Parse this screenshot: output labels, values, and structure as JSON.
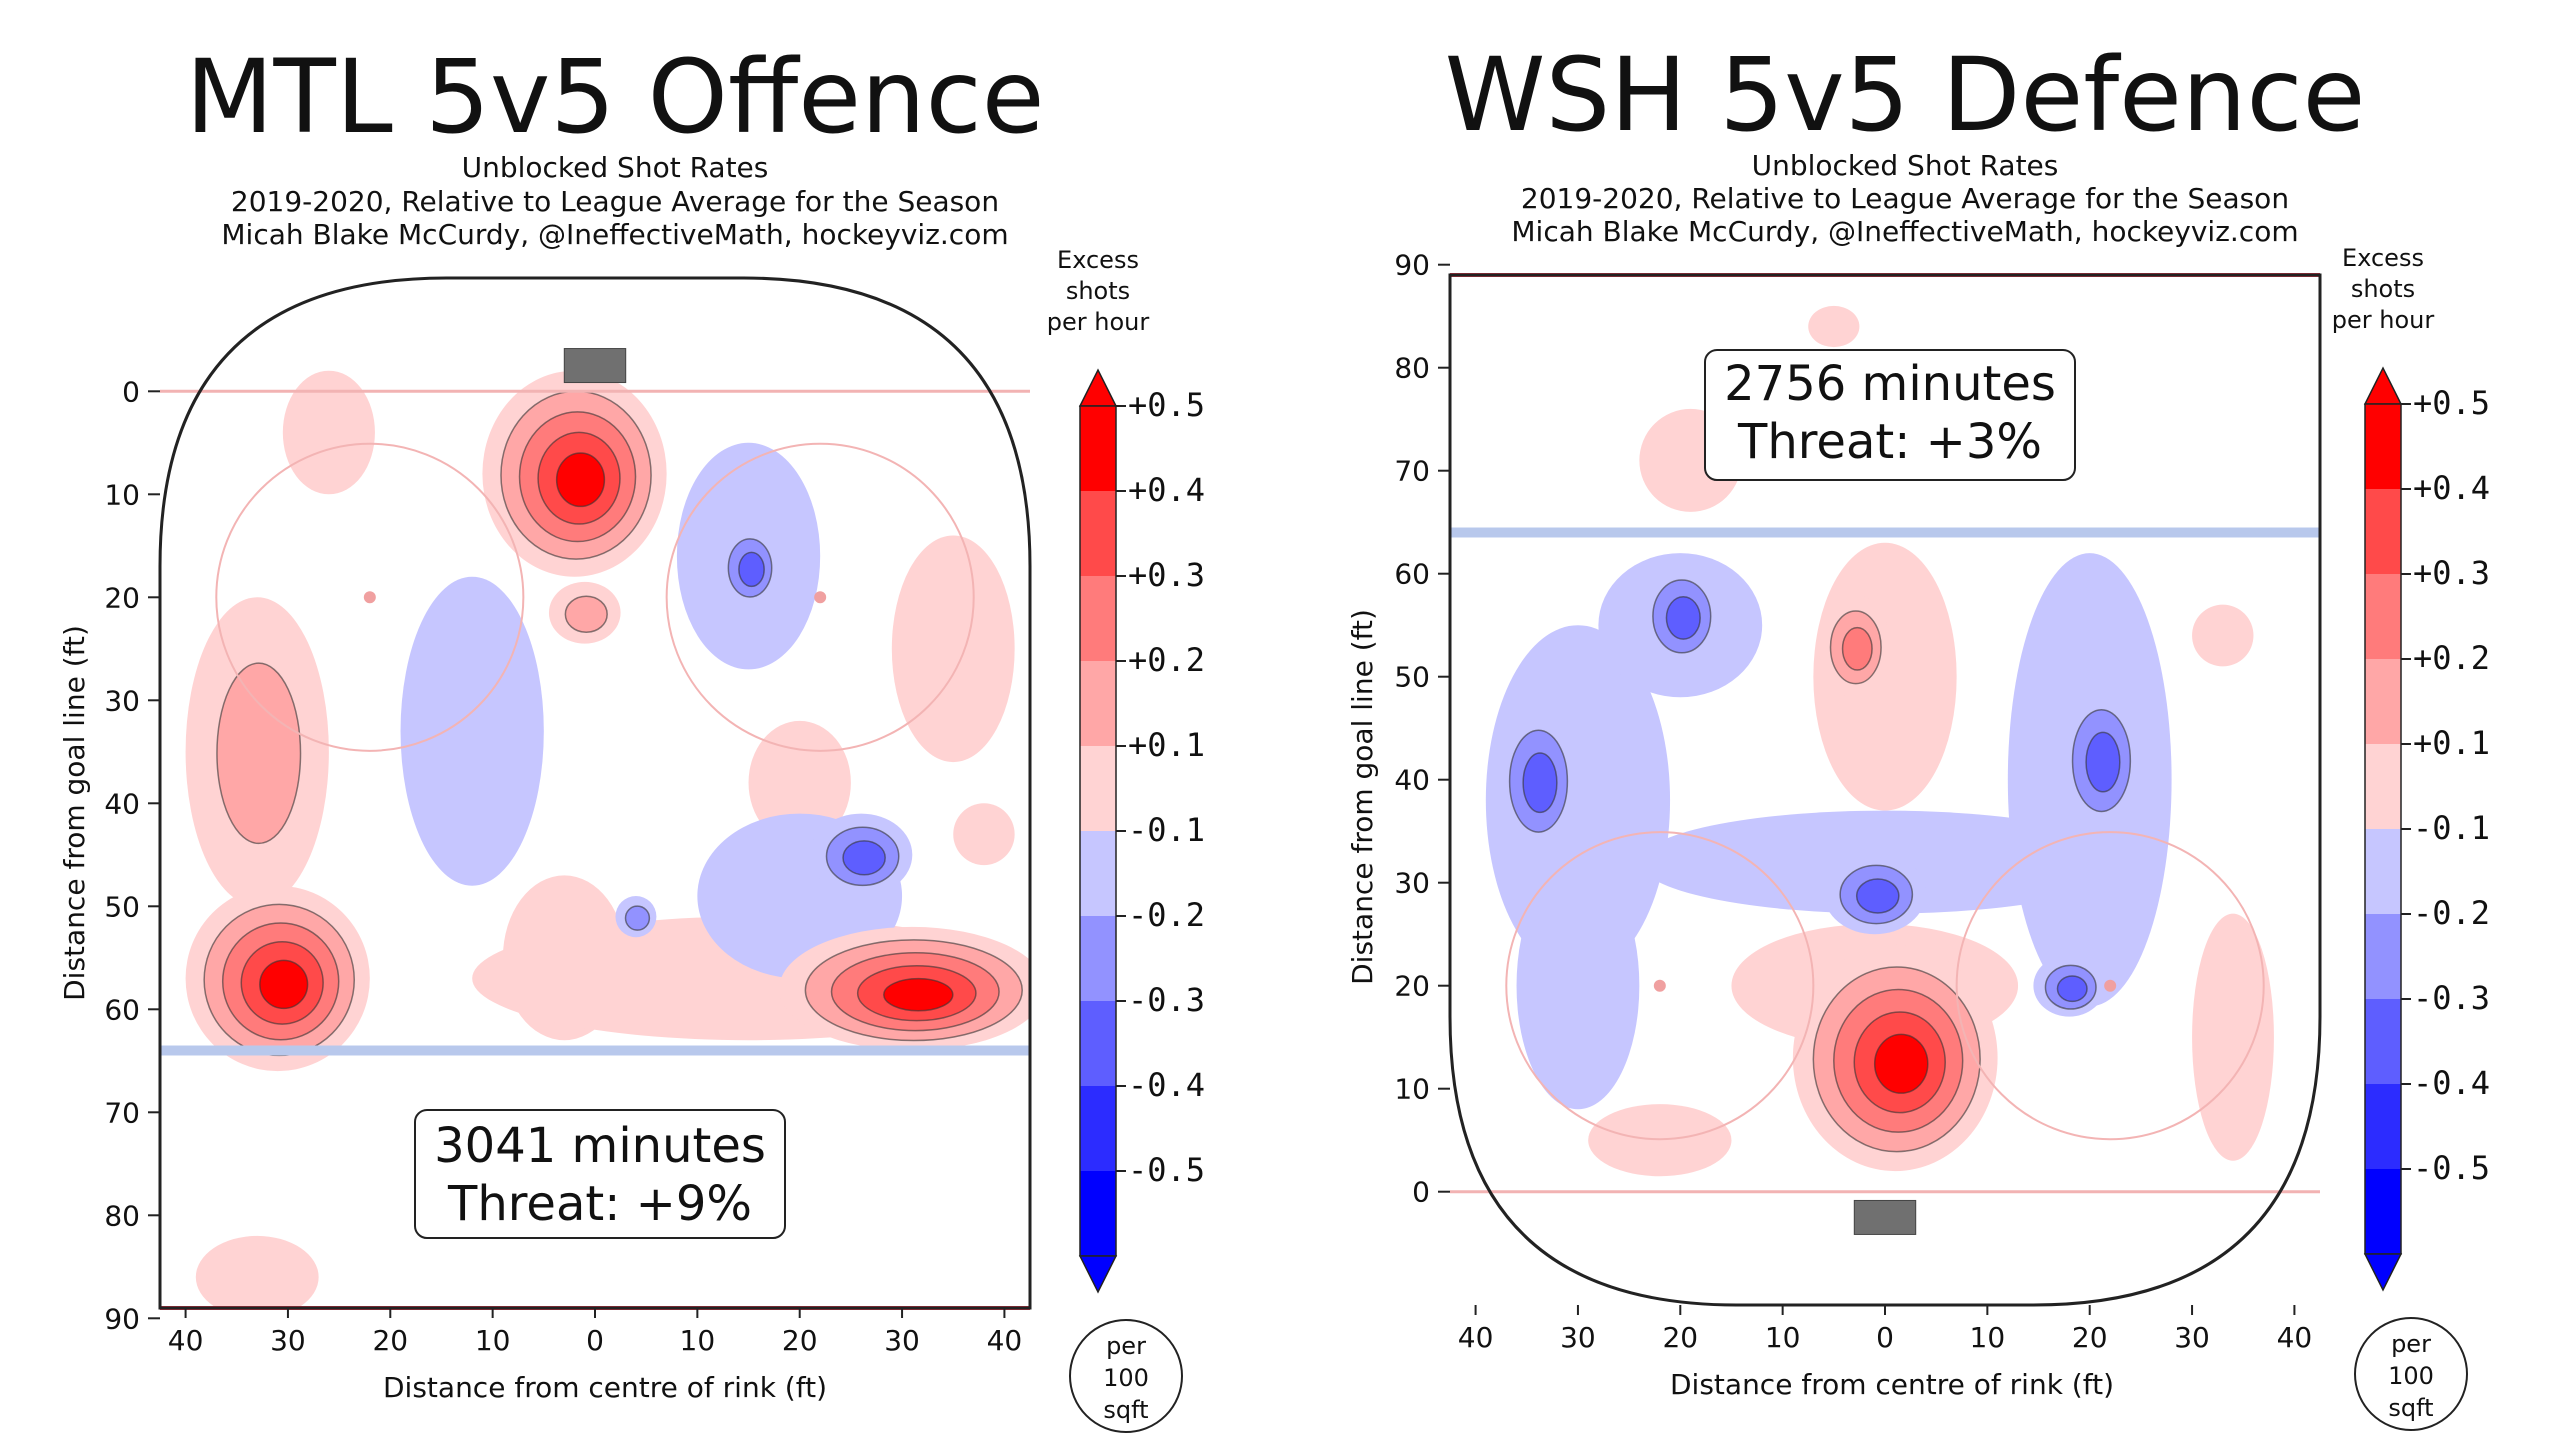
{
  "chart_data": [
    {
      "type": "heatmap",
      "title": "MTL 5v5 Offence",
      "subtitle_lines": [
        "Unblocked Shot Rates",
        "2019-2020, Relative to League Average for the Season",
        "Micah Blake McCurdy, @IneffectiveMath, hockeyviz.com"
      ],
      "xlabel": "Distance from centre of rink (ft)",
      "ylabel": "Distance from goal line (ft)",
      "x_ticks": [
        "40",
        "30",
        "20",
        "10",
        "0",
        "10",
        "20",
        "30",
        "40"
      ],
      "y_ticks": [
        "0",
        "10",
        "20",
        "30",
        "40",
        "50",
        "60",
        "70",
        "80",
        "90"
      ],
      "xlim": [
        -42.5,
        42.5
      ],
      "ylim": [
        -11,
        89
      ],
      "y_inverted": true,
      "goal_at": "top",
      "annotation": {
        "line1": "3041 minutes",
        "line2": "Threat: +9%"
      },
      "blobs": [
        {
          "x": -2,
          "y": 8,
          "rx": 9,
          "ry": 10,
          "value": 0.5
        },
        {
          "x": -1,
          "y": 21.5,
          "rx": 3.5,
          "ry": 3,
          "value": 0.2
        },
        {
          "x": -26,
          "y": 4,
          "rx": 4.5,
          "ry": 6,
          "value": 0.15
        },
        {
          "x": -31,
          "y": 57,
          "rx": 9,
          "ry": 9,
          "value": 0.5
        },
        {
          "x": -33,
          "y": 35,
          "rx": 7,
          "ry": 15,
          "value": 0.18
        },
        {
          "x": 31,
          "y": 58,
          "rx": 13,
          "ry": 6,
          "value": 0.5
        },
        {
          "x": 15,
          "y": 57,
          "rx": 27,
          "ry": 6,
          "value": 0.15
        },
        {
          "x": 35,
          "y": 25,
          "rx": 6,
          "ry": 11,
          "value": 0.12
        },
        {
          "x": 20,
          "y": 38,
          "rx": 5,
          "ry": 6,
          "value": 0.15
        },
        {
          "x": -3,
          "y": 55,
          "rx": 6,
          "ry": 8,
          "value": 0.12
        },
        {
          "x": -33,
          "y": 86,
          "rx": 6,
          "ry": 4,
          "value": 0.15
        },
        {
          "x": 38,
          "y": 43,
          "rx": 3,
          "ry": 3,
          "value": 0.12
        },
        {
          "x": 15,
          "y": 16,
          "rx": 7,
          "ry": 11,
          "value": -0.15
        },
        {
          "x": 15,
          "y": 17,
          "rx": 3,
          "ry": 4,
          "value": -0.3
        },
        {
          "x": -12,
          "y": 33,
          "rx": 7,
          "ry": 15,
          "value": -0.15
        },
        {
          "x": 20,
          "y": 49,
          "rx": 10,
          "ry": 8,
          "value": -0.15
        },
        {
          "x": 26,
          "y": 45,
          "rx": 5,
          "ry": 4,
          "value": -0.3
        },
        {
          "x": 4,
          "y": 51,
          "rx": 2,
          "ry": 2,
          "value": -0.2
        }
      ]
    },
    {
      "type": "heatmap",
      "title": "WSH 5v5 Defence",
      "subtitle_lines": [
        "Unblocked Shot Rates",
        "2019-2020, Relative to League Average for the Season",
        "Micah Blake McCurdy, @IneffectiveMath, hockeyviz.com"
      ],
      "xlabel": "Distance from centre of rink (ft)",
      "ylabel": "Distance from goal line (ft)",
      "x_ticks": [
        "40",
        "30",
        "20",
        "10",
        "0",
        "10",
        "20",
        "30",
        "40"
      ],
      "y_ticks": [
        "0",
        "10",
        "20",
        "30",
        "40",
        "50",
        "60",
        "70",
        "80",
        "90"
      ],
      "xlim": [
        -42.5,
        42.5
      ],
      "ylim": [
        -11,
        89
      ],
      "y_inverted": false,
      "goal_at": "bottom",
      "annotation": {
        "line1": "2756 minutes",
        "line2": "Threat: +3%"
      },
      "blobs": [
        {
          "x": 1,
          "y": 13,
          "rx": 10,
          "ry": 11,
          "value": 0.5
        },
        {
          "x": -1,
          "y": 20,
          "rx": 14,
          "ry": 6,
          "value": 0.15
        },
        {
          "x": 0,
          "y": 50,
          "rx": 7,
          "ry": 13,
          "value": 0.15
        },
        {
          "x": -3,
          "y": 53,
          "rx": 3.5,
          "ry": 5,
          "value": 0.25
        },
        {
          "x": -19,
          "y": 71,
          "rx": 5,
          "ry": 5,
          "value": 0.15
        },
        {
          "x": -22,
          "y": 5,
          "rx": 7,
          "ry": 3.5,
          "value": 0.15
        },
        {
          "x": 34,
          "y": 15,
          "rx": 4,
          "ry": 12,
          "value": 0.15
        },
        {
          "x": 33,
          "y": 54,
          "rx": 3,
          "ry": 3,
          "value": 0.15
        },
        {
          "x": -5,
          "y": 84,
          "rx": 2.5,
          "ry": 2,
          "value": 0.15
        },
        {
          "x": -30,
          "y": 38,
          "rx": 9,
          "ry": 17,
          "value": -0.15
        },
        {
          "x": -20,
          "y": 55,
          "rx": 8,
          "ry": 7,
          "value": -0.15
        },
        {
          "x": -20,
          "y": 56,
          "rx": 4,
          "ry": 5,
          "value": -0.3
        },
        {
          "x": -34,
          "y": 40,
          "rx": 4,
          "ry": 7,
          "value": -0.3
        },
        {
          "x": 0,
          "y": 32,
          "rx": 24,
          "ry": 5,
          "value": -0.15
        },
        {
          "x": -1,
          "y": 29,
          "rx": 5,
          "ry": 4,
          "value": -0.3
        },
        {
          "x": 20,
          "y": 40,
          "rx": 8,
          "ry": 22,
          "value": -0.15
        },
        {
          "x": 21,
          "y": 42,
          "rx": 4,
          "ry": 7,
          "value": -0.3
        },
        {
          "x": 18,
          "y": 20,
          "rx": 3.5,
          "ry": 3,
          "value": -0.3
        },
        {
          "x": -30,
          "y": 20,
          "rx": 6,
          "ry": 12,
          "value": -0.15
        }
      ]
    }
  ],
  "colorbar": {
    "title_lines": [
      "Excess",
      "shots",
      "per hour"
    ],
    "ticks": [
      "+0.5",
      "+0.4",
      "+0.3",
      "+0.2",
      "+0.1",
      "-0.1",
      "-0.2",
      "-0.3",
      "-0.4",
      "-0.5"
    ],
    "unit_lines": [
      "per",
      "100",
      "sqft"
    ],
    "colors": [
      "#ff0000",
      "#ff4a4a",
      "#ff7b7b",
      "#ffa7a7",
      "#ffd3d3",
      "#ffffff",
      "#c6c6ff",
      "#9292ff",
      "#5e5eff",
      "#2c2cff",
      "#0000ff"
    ]
  }
}
